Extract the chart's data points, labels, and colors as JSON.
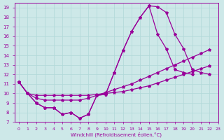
{
  "xlabel": "Windchill (Refroidissement éolien,°C)",
  "background_color": "#cde8e8",
  "grid_color": "#b0d8d8",
  "line_color": "#990099",
  "xlim": [
    -0.5,
    23
  ],
  "ylim": [
    7,
    19.5
  ],
  "xticks": [
    0,
    1,
    2,
    3,
    4,
    5,
    6,
    7,
    8,
    9,
    10,
    11,
    12,
    13,
    14,
    15,
    16,
    17,
    18,
    19,
    20,
    21,
    22,
    23
  ],
  "yticks": [
    7,
    8,
    9,
    10,
    11,
    12,
    13,
    14,
    15,
    16,
    17,
    18,
    19
  ],
  "s1_x": [
    0,
    1,
    2,
    3,
    4,
    5,
    6,
    7,
    8,
    9,
    10,
    11,
    12,
    13,
    14,
    15,
    16,
    17,
    18,
    19,
    20,
    21,
    22
  ],
  "s1_y": [
    11.2,
    10.0,
    9.0,
    8.5,
    8.5,
    7.8,
    8.0,
    7.4,
    7.8,
    9.8,
    9.9,
    12.2,
    14.5,
    16.5,
    18.0,
    19.2,
    19.1,
    18.5,
    16.2,
    14.7,
    12.5,
    12.2,
    12.0
  ],
  "s2_x": [
    0,
    1,
    2,
    3,
    4,
    5,
    6,
    7,
    8,
    9,
    10,
    11,
    12,
    13,
    14,
    15,
    16,
    17,
    18,
    19,
    20
  ],
  "s2_y": [
    11.2,
    10.0,
    9.0,
    8.5,
    8.5,
    7.8,
    8.0,
    7.4,
    7.8,
    9.8,
    9.9,
    12.2,
    14.5,
    16.5,
    18.0,
    19.2,
    16.2,
    14.7,
    12.5,
    12.2,
    12.0
  ],
  "s3_x": [
    0,
    1,
    2,
    3,
    4,
    5,
    6,
    7,
    8,
    9,
    10,
    11,
    12,
    13,
    14,
    15,
    16,
    17,
    18,
    19,
    20,
    21,
    22
  ],
  "s3_y": [
    11.2,
    10.0,
    9.5,
    9.3,
    9.3,
    9.3,
    9.3,
    9.3,
    9.5,
    9.8,
    10.1,
    10.4,
    10.7,
    11.0,
    11.4,
    11.8,
    12.2,
    12.6,
    13.0,
    13.4,
    13.8,
    14.2,
    14.6
  ],
  "s4_x": [
    0,
    1,
    2,
    3,
    4,
    5,
    6,
    7,
    8,
    9,
    10,
    11,
    12,
    13,
    14,
    15,
    16,
    17,
    18,
    19,
    20,
    21,
    22
  ],
  "s4_y": [
    11.2,
    10.0,
    9.8,
    9.8,
    9.8,
    9.8,
    9.8,
    9.8,
    9.8,
    9.9,
    10.0,
    10.1,
    10.2,
    10.4,
    10.6,
    10.8,
    11.1,
    11.4,
    11.7,
    12.0,
    12.3,
    12.6,
    12.9
  ]
}
